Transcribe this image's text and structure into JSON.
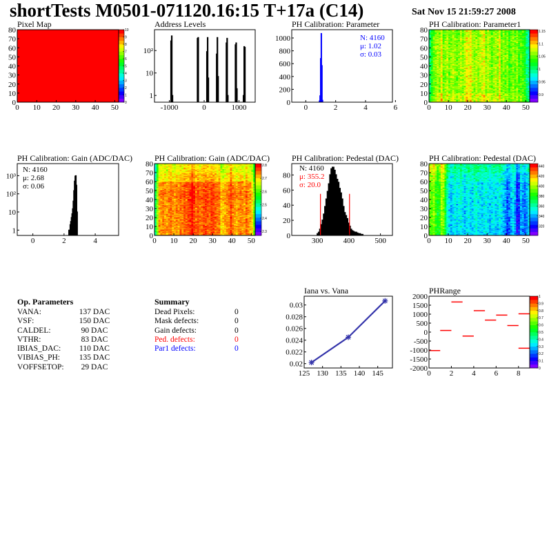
{
  "header": {
    "title": "shortTests M0501-071120.16:15 T+17a (C14)",
    "date": "Sat Nov 15 21:59:27 2008"
  },
  "op_parameters": {
    "heading": "Op. Parameters",
    "rows": [
      {
        "name": "VANA:",
        "value": "137 DAC"
      },
      {
        "name": "VSF:",
        "value": "150 DAC"
      },
      {
        "name": "CALDEL:",
        "value": "90 DAC"
      },
      {
        "name": "VTHR:",
        "value": "83 DAC"
      },
      {
        "name": "IBIAS_DAC:",
        "value": "110 DAC"
      },
      {
        "name": "VIBIAS_PH:",
        "value": "135 DAC"
      },
      {
        "name": "VOFFSETOP:",
        "value": "29 DAC"
      }
    ]
  },
  "summary": {
    "heading": "Summary",
    "rows": [
      {
        "label": "Dead Pixels:",
        "value": "0",
        "color": "#000000"
      },
      {
        "label": "Mask defects:",
        "value": "0",
        "color": "#000000"
      },
      {
        "label": "Gain defects:",
        "value": "0",
        "color": "#000000"
      },
      {
        "label": "Ped. defects:",
        "value": "0",
        "color": "#ff0000"
      },
      {
        "label": "Par1 defects:",
        "value": "0",
        "color": "#0000ff"
      }
    ]
  },
  "chart_data": [
    {
      "id": "pixel_map",
      "type": "heatmap",
      "title": "Pixel Map",
      "xlim": [
        0,
        52
      ],
      "ylim": [
        0,
        80
      ],
      "zlim": [
        0,
        10
      ],
      "xticks": [
        0,
        10,
        20,
        30,
        40,
        50
      ],
      "yticks": [
        0,
        10,
        20,
        30,
        40,
        50,
        60,
        70,
        80
      ],
      "zticks": [
        0,
        1,
        2,
        3,
        4,
        5,
        6,
        7,
        8,
        9,
        10
      ],
      "uniform_value": 10
    },
    {
      "id": "address_levels",
      "type": "histogram",
      "title": "Address Levels",
      "xlim": [
        -1426,
        1465
      ],
      "ylim": [
        0.5,
        850
      ],
      "ylog": true,
      "bin_width": 20,
      "xticks": [
        -1000,
        0,
        1000
      ],
      "yticks": [
        1,
        10,
        100
      ],
      "ytick_labels": [
        "1",
        "10",
        "10²"
      ],
      "color": "#000000",
      "fill": "#000000",
      "bins": [
        {
          "x": -960,
          "y": 270
        },
        {
          "x": -940,
          "y": 450
        },
        {
          "x": -920,
          "y": 1
        },
        {
          "x": -200,
          "y": 350
        },
        {
          "x": -180,
          "y": 380
        },
        {
          "x": 70,
          "y": 90
        },
        {
          "x": 90,
          "y": 380
        },
        {
          "x": 110,
          "y": 6
        },
        {
          "x": 350,
          "y": 70
        },
        {
          "x": 370,
          "y": 380
        },
        {
          "x": 390,
          "y": 7
        },
        {
          "x": 630,
          "y": 220
        },
        {
          "x": 650,
          "y": 350
        },
        {
          "x": 670,
          "y": 1
        },
        {
          "x": 890,
          "y": 180
        },
        {
          "x": 910,
          "y": 220
        },
        {
          "x": 930,
          "y": 2
        },
        {
          "x": 1120,
          "y": 1
        },
        {
          "x": 1140,
          "y": 150
        },
        {
          "x": 1160,
          "y": 140
        }
      ]
    },
    {
      "id": "ph_parameter",
      "type": "histogram",
      "title": "PH Calibration: Parameter",
      "xlim": [
        -0.94,
        5.8
      ],
      "ylim": [
        0,
        1129
      ],
      "bin_width": 0.04,
      "xticks": [
        0,
        2,
        4,
        6
      ],
      "yticks": [
        0,
        200,
        400,
        600,
        800,
        1000
      ],
      "color": "#0000ff",
      "fill": "none",
      "bins": [
        {
          "x": 0.9,
          "y": 20
        },
        {
          "x": 0.94,
          "y": 100
        },
        {
          "x": 0.98,
          "y": 680
        },
        {
          "x": 1.02,
          "y": 1070
        },
        {
          "x": 1.06,
          "y": 570
        },
        {
          "x": 1.1,
          "y": 30
        }
      ],
      "stats": [
        {
          "text": "N: 4160",
          "color": "#0000ff"
        },
        {
          "text": "μ: 1.02",
          "color": "#0000ff"
        },
        {
          "text": "σ: 0.03",
          "color": "#0000ff"
        }
      ]
    },
    {
      "id": "parameter1",
      "type": "heatmap",
      "title": "PH Calibration: Parameter1",
      "xlim": [
        0,
        52
      ],
      "ylim": [
        0,
        80
      ],
      "zlim": [
        0.87,
        1.155
      ],
      "xticks": [
        0,
        10,
        20,
        30,
        40,
        50
      ],
      "yticks": [
        0,
        10,
        20,
        30,
        40,
        50,
        60,
        70,
        80
      ],
      "zticks": [
        0.9,
        0.95,
        1,
        1.05,
        1.1,
        1.15
      ],
      "column_means": [
        1.0,
        1.03,
        1.05,
        1.06,
        1.07,
        1.06,
        1.09,
        1.05,
        1.06,
        1.07,
        1.05,
        1.06,
        1.07,
        1.06,
        1.05,
        1.06,
        1.07,
        1.06,
        1.07,
        1.09,
        1.08,
        1.09,
        1.07,
        1.06,
        1.07,
        1.06,
        1.07,
        1.08,
        1.09,
        1.06,
        1.07,
        1.06,
        1.05,
        1.06,
        1.07,
        1.06,
        1.09,
        1.05,
        1.06,
        1.05,
        1.06,
        1.04,
        1.05,
        1.06,
        1.05,
        1.06,
        1.04,
        1.05,
        1.04,
        1.03,
        1.0,
        0.99
      ],
      "row_band_offsets": [
        0.01,
        0,
        0,
        0,
        0,
        0,
        0,
        -0.005
      ]
    },
    {
      "id": "gain_hist",
      "type": "histogram",
      "title": "PH Calibration: Gain (ADC/DAC)",
      "xlim": [
        -1.0,
        5.5
      ],
      "ylim": [
        0.51,
        4600
      ],
      "ylog": true,
      "bin_width": 0.04,
      "xticks": [
        0,
        2,
        4
      ],
      "yticks": [
        1,
        10,
        100,
        1000
      ],
      "ytick_labels": [
        "1",
        "10",
        "10²",
        "10³"
      ],
      "color": "#000000",
      "fill": "none",
      "bins": [
        {
          "x": 2.3,
          "y": 1
        },
        {
          "x": 2.34,
          "y": 1
        },
        {
          "x": 2.38,
          "y": 2
        },
        {
          "x": 2.42,
          "y": 3
        },
        {
          "x": 2.46,
          "y": 5
        },
        {
          "x": 2.5,
          "y": 8
        },
        {
          "x": 2.54,
          "y": 15
        },
        {
          "x": 2.58,
          "y": 40
        },
        {
          "x": 2.62,
          "y": 150
        },
        {
          "x": 2.66,
          "y": 500
        },
        {
          "x": 2.7,
          "y": 950
        },
        {
          "x": 2.74,
          "y": 1000
        },
        {
          "x": 2.78,
          "y": 300
        },
        {
          "x": 2.82,
          "y": 10
        }
      ],
      "stats": [
        {
          "text": "N: 4160",
          "color": "#000000"
        },
        {
          "text": "μ: 2.68",
          "color": "#000000"
        },
        {
          "text": "σ: 0.06",
          "color": "#000000"
        }
      ]
    },
    {
      "id": "gain_map",
      "type": "heatmap",
      "title": "PH Calibration: Gain (ADC/DAC)",
      "xlim": [
        0,
        52
      ],
      "ylim": [
        0,
        80
      ],
      "zlim": [
        2.27,
        2.81
      ],
      "xticks": [
        0,
        10,
        20,
        30,
        40,
        50
      ],
      "yticks": [
        0,
        10,
        20,
        30,
        40,
        50,
        60,
        70,
        80
      ],
      "zticks": [
        2.3,
        2.4,
        2.5,
        2.6,
        2.7,
        2.8
      ],
      "column_means": [
        2.52,
        2.63,
        2.72,
        2.73,
        2.74,
        2.73,
        2.72,
        2.74,
        2.75,
        2.73,
        2.72,
        2.74,
        2.73,
        2.75,
        2.74,
        2.76,
        2.75,
        2.76,
        2.77,
        2.8,
        2.77,
        2.75,
        2.76,
        2.74,
        2.75,
        2.76,
        2.77,
        2.76,
        2.75,
        2.77,
        2.76,
        2.75,
        2.74,
        2.75,
        2.7,
        2.71,
        2.72,
        2.73,
        2.74,
        2.77,
        2.74,
        2.73,
        2.72,
        2.73,
        2.74,
        2.73,
        2.72,
        2.75,
        2.73,
        2.72,
        2.7,
        2.62
      ],
      "row_band_offsets": [
        0,
        0,
        0,
        0,
        0.01,
        0,
        -0.04,
        -0.06
      ]
    },
    {
      "id": "pedestal_hist",
      "type": "histogram",
      "title": "PH Calibration: Pedestal (DAC)",
      "xlim": [
        219,
        538
      ],
      "ylim": [
        0,
        95
      ],
      "bin_width": 4,
      "xticks": [
        300,
        400,
        500
      ],
      "yticks": [
        0,
        20,
        40,
        60,
        80
      ],
      "color": "#000000",
      "fill": "none",
      "cut_lines": [
        310,
        402
      ],
      "cut_height": 55,
      "cut_color": "#ff0000",
      "bins": [
        {
          "x": 300,
          "y": 2
        },
        {
          "x": 304,
          "y": 4
        },
        {
          "x": 308,
          "y": 8
        },
        {
          "x": 312,
          "y": 14
        },
        {
          "x": 316,
          "y": 20
        },
        {
          "x": 320,
          "y": 28
        },
        {
          "x": 324,
          "y": 38
        },
        {
          "x": 328,
          "y": 48
        },
        {
          "x": 332,
          "y": 58
        },
        {
          "x": 336,
          "y": 68
        },
        {
          "x": 340,
          "y": 80
        },
        {
          "x": 344,
          "y": 88
        },
        {
          "x": 348,
          "y": 90
        },
        {
          "x": 352,
          "y": 86
        },
        {
          "x": 356,
          "y": 80
        },
        {
          "x": 360,
          "y": 74
        },
        {
          "x": 364,
          "y": 70
        },
        {
          "x": 368,
          "y": 62
        },
        {
          "x": 372,
          "y": 56
        },
        {
          "x": 376,
          "y": 48
        },
        {
          "x": 380,
          "y": 38
        },
        {
          "x": 384,
          "y": 30
        },
        {
          "x": 388,
          "y": 26
        },
        {
          "x": 392,
          "y": 22
        },
        {
          "x": 396,
          "y": 16
        },
        {
          "x": 400,
          "y": 12
        },
        {
          "x": 404,
          "y": 8
        },
        {
          "x": 408,
          "y": 6
        },
        {
          "x": 412,
          "y": 5
        },
        {
          "x": 416,
          "y": 4
        },
        {
          "x": 420,
          "y": 4
        },
        {
          "x": 424,
          "y": 3
        },
        {
          "x": 428,
          "y": 2
        },
        {
          "x": 432,
          "y": 2
        },
        {
          "x": 436,
          "y": 1
        },
        {
          "x": 440,
          "y": 1
        }
      ],
      "stats": [
        {
          "text": "N: 4160",
          "color": "#000000"
        },
        {
          "text": "μ: 355.2",
          "color": "#ff0000"
        },
        {
          "text": "σ: 20.0",
          "color": "#ff0000"
        }
      ]
    },
    {
      "id": "pedestal_map",
      "type": "heatmap",
      "title": "PH Calibration: Pedestal (DAC)",
      "xlim": [
        0,
        52
      ],
      "ylim": [
        0,
        80
      ],
      "zlim": [
        301,
        445
      ],
      "xticks": [
        0,
        10,
        20,
        30,
        40,
        50
      ],
      "yticks": [
        0,
        10,
        20,
        30,
        40,
        50,
        60,
        70,
        80
      ],
      "zticks": [
        320,
        340,
        360,
        380,
        400,
        420,
        440
      ],
      "column_means": [
        395,
        392,
        400,
        388,
        380,
        385,
        402,
        398,
        378,
        360,
        352,
        345,
        350,
        355,
        348,
        352,
        356,
        350,
        346,
        352,
        354,
        350,
        348,
        356,
        358,
        352,
        350,
        348,
        352,
        355,
        350,
        346,
        350,
        352,
        348,
        350,
        354,
        350,
        345,
        340,
        332,
        335,
        345,
        350,
        342,
        322,
        328,
        345,
        340,
        335,
        342,
        350
      ],
      "row_band_offsets": [
        -5,
        -3,
        -3,
        -2,
        0,
        0,
        5,
        12
      ]
    },
    {
      "id": "iana",
      "type": "line",
      "title": "Iana vs. Vana",
      "xlim": [
        125,
        149
      ],
      "ylim": [
        0.01926,
        0.0315
      ],
      "xticks": [
        125,
        130,
        135,
        140,
        145
      ],
      "yticks": [
        0.02,
        0.022,
        0.024,
        0.026,
        0.028,
        0.03
      ],
      "color": "#3333aa",
      "points": [
        {
          "x": 127,
          "y": 0.0202
        },
        {
          "x": 137,
          "y": 0.0245
        },
        {
          "x": 147,
          "y": 0.0307
        }
      ]
    },
    {
      "id": "phrange",
      "type": "heatmap",
      "title": "PHRange",
      "xlim": [
        0,
        9
      ],
      "ylim": [
        -2000,
        2000
      ],
      "zlim": [
        0,
        1
      ],
      "xticks": [
        0,
        2,
        4,
        6,
        8
      ],
      "yticks": [
        -2000,
        -1500,
        -1000,
        -500,
        0,
        500,
        1000,
        1500,
        2000
      ],
      "zticks": [
        0,
        0.1,
        0.2,
        0.3,
        0.4,
        0.5,
        0.6,
        0.7,
        0.8,
        0.9,
        1
      ],
      "segment_color": "#ff0000",
      "segments": [
        {
          "x0": 0,
          "x1": 1,
          "y": -1030
        },
        {
          "x0": 1,
          "x1": 2,
          "y": 90
        },
        {
          "x0": 2,
          "x1": 3,
          "y": 1680
        },
        {
          "x0": 3,
          "x1": 4,
          "y": -220
        },
        {
          "x0": 4,
          "x1": 5,
          "y": 1190
        },
        {
          "x0": 5,
          "x1": 6,
          "y": 670
        },
        {
          "x0": 6,
          "x1": 7,
          "y": 945
        },
        {
          "x0": 7,
          "x1": 8,
          "y": 365
        },
        {
          "x0": 8,
          "x1": 9,
          "y": 1020
        },
        {
          "x0": 8,
          "x1": 9,
          "y": -900
        }
      ]
    }
  ]
}
